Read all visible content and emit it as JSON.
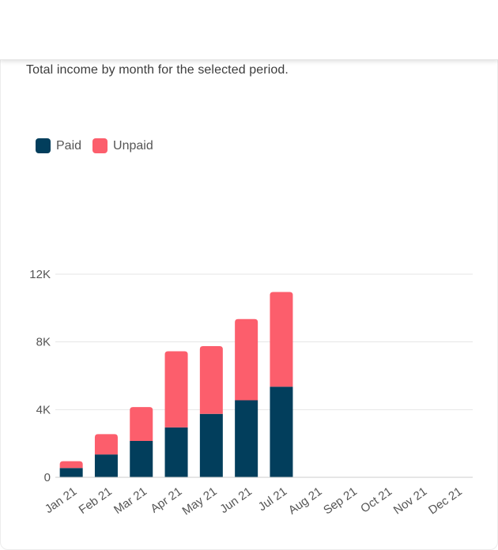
{
  "header": {
    "subtitle": "Total income by month for the selected period."
  },
  "colors": {
    "paid": "#023e5c",
    "unpaid": "#fc5e6c",
    "grid": "#e6e6e6",
    "axis": "#555555"
  },
  "legend": [
    {
      "name": "Paid",
      "color": "#023e5c"
    },
    {
      "name": "Unpaid",
      "color": "#fc5e6c"
    }
  ],
  "chart_data": {
    "type": "bar",
    "stacked": true,
    "title": "",
    "xlabel": "",
    "ylabel": "",
    "categories": [
      "Jan 21",
      "Feb 21",
      "Mar 21",
      "Apr 21",
      "May 21",
      "Jun 21",
      "Jul 21",
      "Aug 21",
      "Sep 21",
      "Oct 21",
      "Nov 21",
      "Dec 21"
    ],
    "series": [
      {
        "name": "Paid",
        "color": "#023e5c",
        "values": [
          550,
          1350,
          2150,
          2950,
          3750,
          4550,
          5350,
          0,
          0,
          0,
          0,
          0
        ]
      },
      {
        "name": "Unpaid",
        "color": "#fc5e6c",
        "values": [
          400,
          1200,
          2000,
          4500,
          4000,
          4800,
          5600,
          0,
          0,
          0,
          0,
          0
        ]
      }
    ],
    "ylim": [
      0,
      12000
    ],
    "yticks": [
      0,
      4000,
      8000,
      12000
    ],
    "ytick_labels": [
      "0",
      "4K",
      "8K",
      "12K"
    ],
    "grid": true,
    "legend_position": "top-left"
  }
}
